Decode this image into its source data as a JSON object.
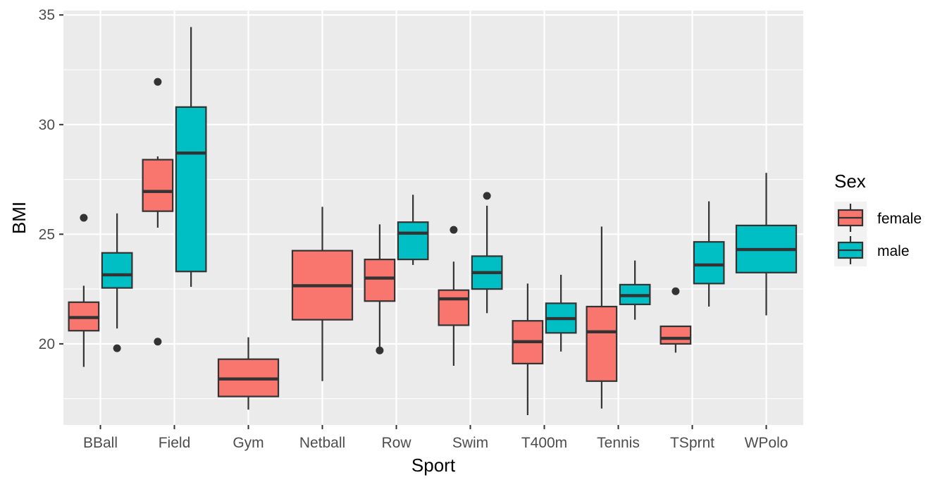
{
  "chart_data": {
    "type": "boxplot",
    "xlabel": "Sport",
    "ylabel": "BMI",
    "ylim": [
      16.3,
      35.2
    ],
    "yticks": [
      20,
      25,
      30,
      35
    ],
    "grid": true,
    "legend": {
      "title": "Sex",
      "position": "right"
    },
    "categories": [
      "BBall",
      "Field",
      "Gym",
      "Netball",
      "Row",
      "Swim",
      "T400m",
      "Tennis",
      "TSprnt",
      "WPolo"
    ],
    "series": [
      {
        "name": "female",
        "color": "#f8766d",
        "boxes": [
          {
            "category": "BBall",
            "whisker_low": 18.95,
            "q1": 20.6,
            "median": 21.2,
            "q3": 21.9,
            "whisker_high": 22.65,
            "outliers": [
              25.75
            ]
          },
          {
            "category": "Field",
            "whisker_low": 25.3,
            "q1": 26.05,
            "median": 26.95,
            "q3": 28.4,
            "whisker_high": 28.55,
            "outliers": [
              31.95,
              20.1
            ]
          },
          {
            "category": "Gym",
            "whisker_low": 17.0,
            "q1": 17.6,
            "median": 18.4,
            "q3": 19.3,
            "whisker_high": 20.3,
            "outliers": []
          },
          {
            "category": "Netball",
            "whisker_low": 18.3,
            "q1": 21.1,
            "median": 22.65,
            "q3": 24.25,
            "whisker_high": 26.25,
            "outliers": []
          },
          {
            "category": "Row",
            "whisker_low": 19.8,
            "q1": 21.95,
            "median": 23.0,
            "q3": 23.85,
            "whisker_high": 25.45,
            "outliers": [
              19.7
            ]
          },
          {
            "category": "Swim",
            "whisker_low": 19.0,
            "q1": 20.85,
            "median": 22.05,
            "q3": 22.45,
            "whisker_high": 23.75,
            "outliers": [
              25.2
            ]
          },
          {
            "category": "T400m",
            "whisker_low": 16.75,
            "q1": 19.1,
            "median": 20.1,
            "q3": 21.05,
            "whisker_high": 22.75,
            "outliers": []
          },
          {
            "category": "Tennis",
            "whisker_low": 17.05,
            "q1": 18.3,
            "median": 20.55,
            "q3": 21.7,
            "whisker_high": 25.35,
            "outliers": []
          },
          {
            "category": "TSprnt",
            "whisker_low": 19.6,
            "q1": 20.0,
            "median": 20.25,
            "q3": 20.8,
            "whisker_high": 20.8,
            "outliers": [
              22.4
            ]
          }
        ]
      },
      {
        "name": "male",
        "color": "#00bfc4",
        "boxes": [
          {
            "category": "BBall",
            "whisker_low": 20.7,
            "q1": 22.55,
            "median": 23.15,
            "q3": 24.15,
            "whisker_high": 25.95,
            "outliers": [
              19.8
            ]
          },
          {
            "category": "Field",
            "whisker_low": 22.6,
            "q1": 23.3,
            "median": 28.7,
            "q3": 30.8,
            "whisker_high": 34.45,
            "outliers": []
          },
          {
            "category": "Row",
            "whisker_low": 23.6,
            "q1": 23.85,
            "median": 25.05,
            "q3": 25.55,
            "whisker_high": 26.8,
            "outliers": []
          },
          {
            "category": "Swim",
            "whisker_low": 21.4,
            "q1": 22.5,
            "median": 23.25,
            "q3": 24.0,
            "whisker_high": 26.3,
            "outliers": [
              26.75
            ]
          },
          {
            "category": "T400m",
            "whisker_low": 19.65,
            "q1": 20.5,
            "median": 21.15,
            "q3": 21.85,
            "whisker_high": 23.15,
            "outliers": []
          },
          {
            "category": "Tennis",
            "whisker_low": 21.1,
            "q1": 21.8,
            "median": 22.2,
            "q3": 22.7,
            "whisker_high": 23.8,
            "outliers": []
          },
          {
            "category": "TSprnt",
            "whisker_low": 21.7,
            "q1": 22.75,
            "median": 23.6,
            "q3": 24.65,
            "whisker_high": 26.5,
            "outliers": []
          },
          {
            "category": "WPolo",
            "whisker_low": 21.3,
            "q1": 23.25,
            "median": 24.3,
            "q3": 25.4,
            "whisker_high": 27.8,
            "outliers": []
          }
        ]
      }
    ]
  }
}
